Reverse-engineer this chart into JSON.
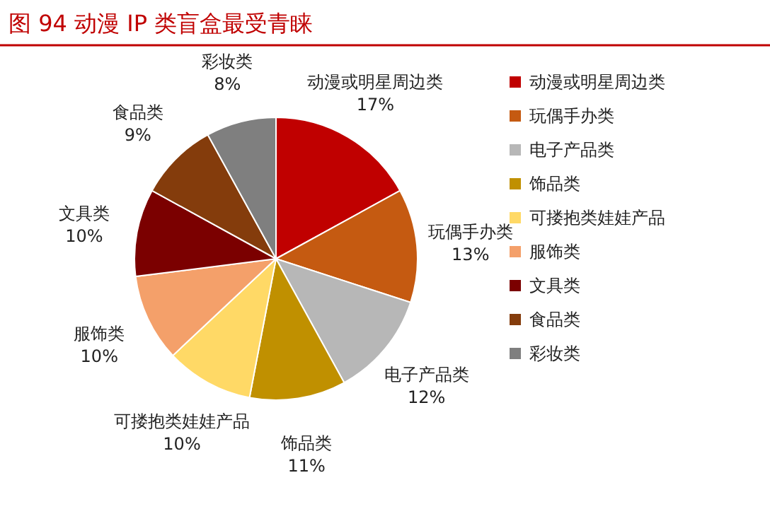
{
  "chart_data": {
    "type": "pie",
    "title": "图 94   动漫 IP 类盲盒最受青睐",
    "categories": [
      "动漫或明星周边类",
      "玩偶手办类",
      "电子产品类",
      "饰品类",
      "可搂抱类娃娃产品",
      "服饰类",
      "文具类",
      "食品类",
      "彩妆类"
    ],
    "values": [
      17,
      13,
      12,
      11,
      10,
      10,
      10,
      9,
      8
    ],
    "colors": [
      "#c00000",
      "#c55a11",
      "#b7b7b7",
      "#c09000",
      "#ffd966",
      "#f4a06a",
      "#7b0000",
      "#843c0c",
      "#7f7f7f"
    ],
    "value_labels": [
      "17%",
      "13%",
      "12%",
      "11%",
      "10%",
      "10%",
      "10%",
      "9%",
      "8%"
    ],
    "legend": "right"
  }
}
